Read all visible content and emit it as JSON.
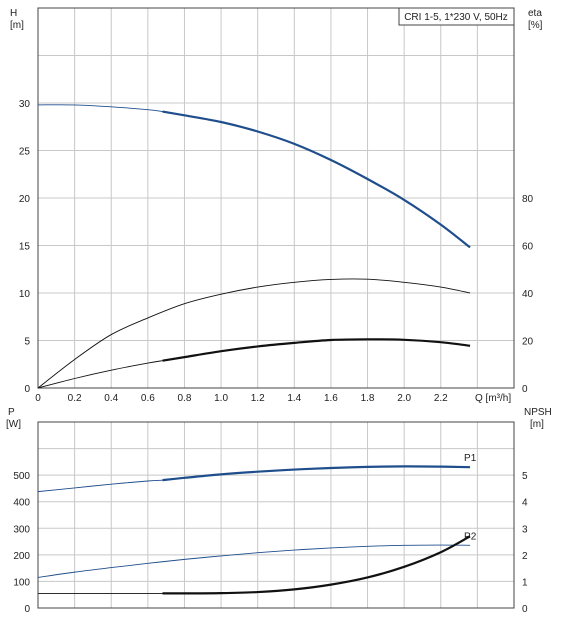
{
  "chart_data": [
    {
      "type": "line",
      "title": "CRI 1-5, 1*230 V, 50Hz",
      "xlabel": "Q [m³/h]",
      "ylabel": "H\n[m]",
      "y2label": "eta\n[%]",
      "xlim": [
        0,
        2.6
      ],
      "xticks": [
        "0",
        "0.2",
        "0.4",
        "0.6",
        "0.8",
        "1.0",
        "1.2",
        "1.4",
        "1.6",
        "1.8",
        "2.0",
        "2.2"
      ],
      "ylim": [
        0,
        40
      ],
      "yticks": [
        "0",
        "5",
        "10",
        "15",
        "20",
        "25",
        "30"
      ],
      "y2lim": [
        0,
        160
      ],
      "y2ticks": [
        "0",
        "20",
        "40",
        "60",
        "80"
      ],
      "grid": true,
      "series": [
        {
          "role": "head",
          "axis": "left",
          "color": "#1f4e8c",
          "x": [
            0,
            0.2,
            0.4,
            0.6,
            0.68,
            0.8,
            1.0,
            1.2,
            1.4,
            1.6,
            1.8,
            2.0,
            2.2,
            2.36
          ],
          "values": [
            29.8,
            29.8,
            29.6,
            29.3,
            29.1,
            28.7,
            28.0,
            27.0,
            25.7,
            24.0,
            22.0,
            19.8,
            17.2,
            14.8
          ],
          "thick_from": 0.68
        },
        {
          "role": "efficiency-outer",
          "axis": "right",
          "color": "#111111",
          "x": [
            0,
            0.2,
            0.4,
            0.6,
            0.8,
            1.0,
            1.2,
            1.4,
            1.6,
            1.8,
            2.0,
            2.2,
            2.36
          ],
          "values": [
            0,
            12,
            22.5,
            29.5,
            35.5,
            39.5,
            42.5,
            44.5,
            45.7,
            45.8,
            44.5,
            42.5,
            40
          ],
          "thick_from": 99
        },
        {
          "role": "efficiency-inner",
          "axis": "right",
          "color": "#111111",
          "x": [
            0,
            0.2,
            0.4,
            0.6,
            0.68,
            0.8,
            1.0,
            1.2,
            1.4,
            1.6,
            1.8,
            2.0,
            2.2,
            2.36
          ],
          "values": [
            0,
            4,
            7.5,
            10.5,
            11.5,
            13,
            15.5,
            17.5,
            19,
            20.2,
            20.5,
            20.3,
            19.3,
            17.8
          ],
          "thick_from": 0.68
        }
      ]
    },
    {
      "type": "line",
      "xlim": [
        0,
        2.6
      ],
      "ylabel": "P\n[W]",
      "y2label": "NPSH\n[m]",
      "ylim": [
        0,
        700
      ],
      "yticks": [
        "0",
        "100",
        "200",
        "300",
        "400",
        "500"
      ],
      "y2lim": [
        0,
        7
      ],
      "y2ticks": [
        "0",
        "1",
        "2",
        "3",
        "4",
        "5"
      ],
      "grid": true,
      "series": [
        {
          "name": "P1",
          "axis": "left",
          "color": "#1f4e8c",
          "x": [
            0,
            0.2,
            0.4,
            0.6,
            0.68,
            0.8,
            1.0,
            1.2,
            1.4,
            1.6,
            1.8,
            2.0,
            2.2,
            2.36
          ],
          "values": [
            438,
            452,
            466,
            478,
            481,
            490,
            503,
            513,
            521,
            527,
            531,
            533,
            532,
            530
          ],
          "thick_from": 0.68
        },
        {
          "name": "P2",
          "axis": "left",
          "color": "#1f4e8c",
          "x": [
            0,
            0.2,
            0.4,
            0.6,
            0.8,
            1.0,
            1.2,
            1.4,
            1.6,
            1.8,
            2.0,
            2.2,
            2.36
          ],
          "values": [
            115,
            135,
            152,
            168,
            183,
            196,
            208,
            218,
            226,
            232,
            236,
            237,
            236
          ],
          "thick_from": 99
        },
        {
          "role": "npsh",
          "axis": "right",
          "color": "#111111",
          "x": [
            0,
            0.4,
            0.68,
            0.8,
            1.0,
            1.2,
            1.4,
            1.6,
            1.8,
            2.0,
            2.2,
            2.36
          ],
          "values": [
            0.55,
            0.55,
            0.55,
            0.55,
            0.56,
            0.6,
            0.7,
            0.88,
            1.15,
            1.55,
            2.1,
            2.7
          ],
          "thin_until": 0.68,
          "thick_from": 0.68
        }
      ]
    }
  ]
}
